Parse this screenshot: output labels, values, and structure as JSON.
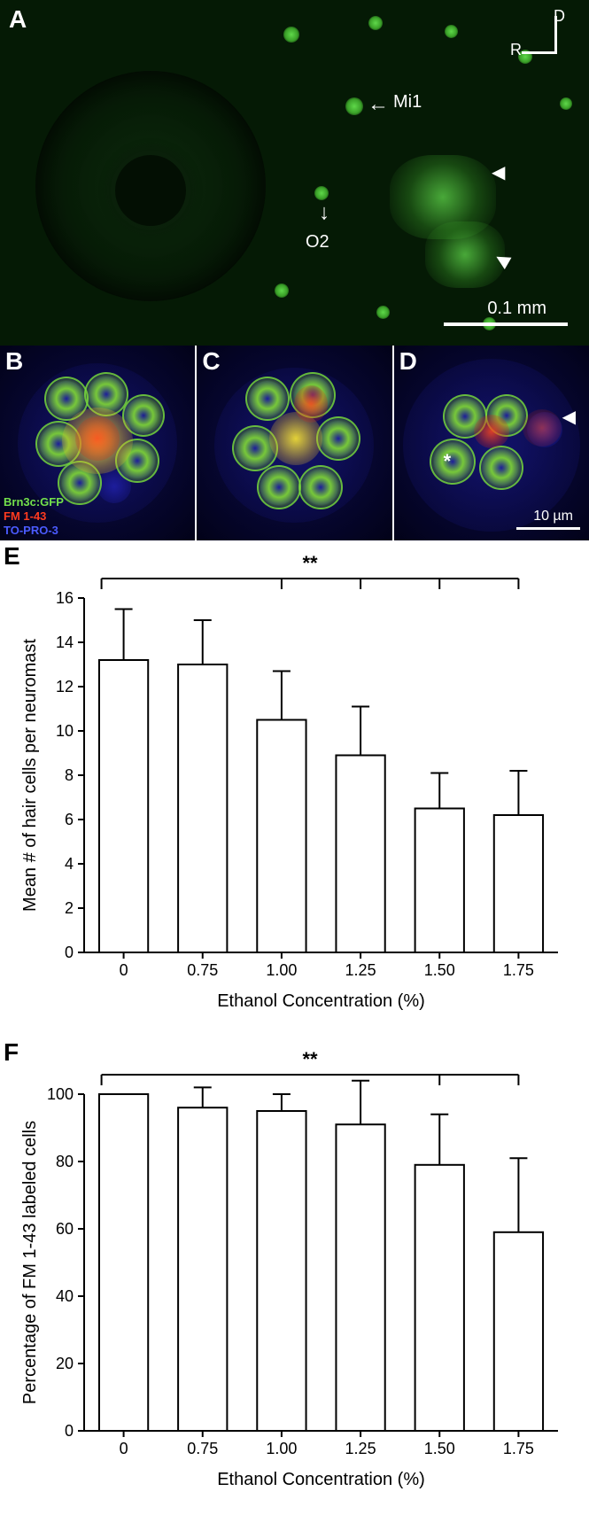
{
  "panelA": {
    "label": "A",
    "compass": {
      "d": "D",
      "r": "R"
    },
    "annots": {
      "mi1": "Mi1",
      "o2": "O2"
    },
    "scalebar": "0.1 mm"
  },
  "panelB": {
    "label": "B",
    "legend": {
      "g": "Brn3c:GFP",
      "r": "FM 1-43",
      "b": "TO-PRO-3"
    }
  },
  "panelC": {
    "label": "C"
  },
  "panelD": {
    "label": "D",
    "scalebar": "10 µm",
    "asterisk": "*"
  },
  "chartE": {
    "label": "E",
    "type": "bar",
    "ylabel": "Mean # of hair cells per neuromast",
    "xlabel": "Ethanol Concentration (%)",
    "categories": [
      "0",
      "0.75",
      "1.00",
      "1.25",
      "1.50",
      "1.75"
    ],
    "values": [
      13.2,
      13.0,
      10.5,
      8.9,
      6.5,
      6.2
    ],
    "errors": [
      2.3,
      2.0,
      2.2,
      2.2,
      1.6,
      2.0
    ],
    "ylim": [
      0,
      16
    ],
    "ytick_step": 2,
    "bar_fill": "#ffffff",
    "bar_stroke": "#000000",
    "axis_color": "#000000",
    "tick_fontsize": 18,
    "label_fontsize": 20,
    "sig": {
      "text": "**",
      "from": 0,
      "to": [
        2,
        3,
        4,
        5
      ]
    }
  },
  "chartF": {
    "label": "F",
    "type": "bar",
    "ylabel": "Percentage of FM 1-43 labeled cells",
    "xlabel": "Ethanol Concentration (%)",
    "categories": [
      "0",
      "0.75",
      "1.00",
      "1.25",
      "1.50",
      "1.75"
    ],
    "values": [
      100,
      96,
      95,
      91,
      79,
      59
    ],
    "errors": [
      0,
      6,
      5,
      13,
      15,
      22
    ],
    "ylim": [
      0,
      100
    ],
    "ytick_step": 20,
    "bar_fill": "#ffffff",
    "bar_stroke": "#000000",
    "axis_color": "#000000",
    "tick_fontsize": 18,
    "label_fontsize": 20,
    "sig": {
      "text": "**",
      "from": 0,
      "to": [
        4,
        5
      ]
    }
  }
}
